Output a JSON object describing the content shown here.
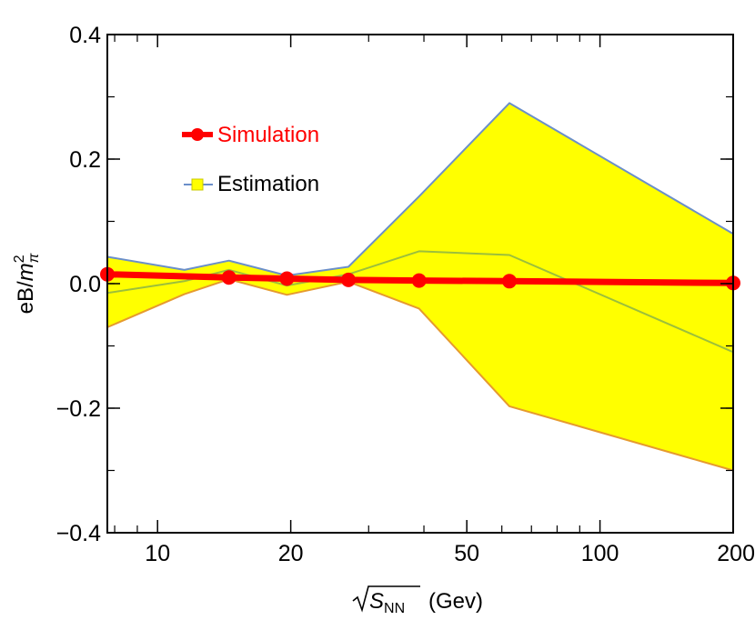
{
  "chart_data": {
    "type": "area",
    "x_scale": "log",
    "xlim": [
      7.7,
      200
    ],
    "ylim": [
      -0.4,
      0.4
    ],
    "x_ticks": [
      10,
      20,
      50,
      100,
      200
    ],
    "x_tick_labels": [
      "10",
      "20",
      "50",
      "100",
      "200"
    ],
    "y_ticks": [
      -0.4,
      -0.2,
      0.0,
      0.2,
      0.4
    ],
    "y_tick_labels": [
      "−0.4",
      "−0.2",
      "0.0",
      "0.2",
      "0.4"
    ],
    "xlabel_radicand": "S",
    "xlabel_subscript": "NN",
    "xlabel_unit": "(Gev)",
    "ylabel_prefix": "eB/",
    "ylabel_m": "m",
    "ylabel_sup": "2",
    "ylabel_sub": "π",
    "legend_position": "top-left",
    "band": {
      "name": "Estimation",
      "color": "#ffff00",
      "x": [
        7.7,
        11.5,
        14.5,
        19.6,
        27,
        39,
        62.4,
        200
      ],
      "upper": [
        0.043,
        0.022,
        0.037,
        0.013,
        0.027,
        0.14,
        0.29,
        0.08
      ],
      "lower": [
        -0.07,
        -0.017,
        0.007,
        -0.018,
        0.003,
        -0.04,
        -0.197,
        -0.3
      ],
      "middle": [
        -0.015,
        0.004,
        0.022,
        -0.003,
        0.015,
        0.052,
        0.046,
        -0.11
      ],
      "upper_color": "#6b8fc9",
      "lower_color": "#e69a2e",
      "middle_color": "#9cbf3b"
    },
    "series": [
      {
        "name": "Simulation",
        "color": "#ff0000",
        "x": [
          7.7,
          14.5,
          19.6,
          27,
          39,
          62.4,
          200
        ],
        "values": [
          0.015,
          0.01,
          0.008,
          0.006,
          0.005,
          0.004,
          0.001
        ]
      }
    ],
    "grid": false
  }
}
